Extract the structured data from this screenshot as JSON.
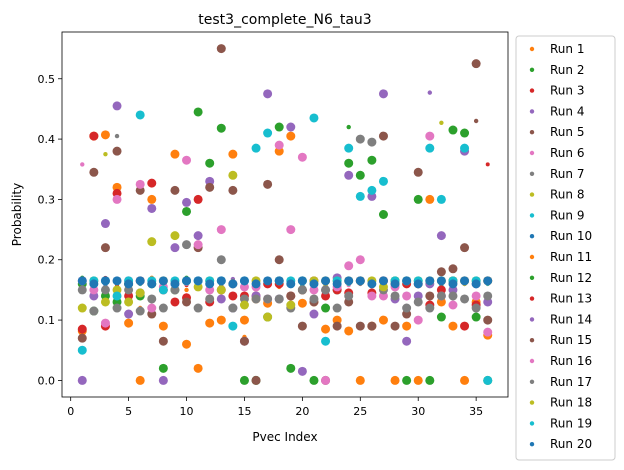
{
  "chart_data": {
    "type": "scatter",
    "title": "test3_complete_N6_tau3",
    "xlabel": "Pvec Index",
    "ylabel": "Probability",
    "xlim": [
      -0.75,
      37.75
    ],
    "ylim": [
      -0.0275,
      0.5775
    ],
    "xticks": [
      0,
      5,
      10,
      15,
      20,
      25,
      30,
      35
    ],
    "yticks": [
      0.0,
      0.1,
      0.2,
      0.3,
      0.4,
      0.5
    ],
    "xtick_labels": [
      "0",
      "5",
      "10",
      "15",
      "20",
      "25",
      "30",
      "35"
    ],
    "ytick_labels": [
      "0.0",
      "0.1",
      "0.2",
      "0.3",
      "0.4",
      "0.5"
    ],
    "grid": false,
    "legend_position": "outside-right",
    "x": [
      1,
      2,
      3,
      4,
      5,
      6,
      7,
      8,
      9,
      10,
      11,
      12,
      13,
      14,
      15,
      16,
      17,
      18,
      19,
      20,
      21,
      22,
      23,
      24,
      25,
      26,
      27,
      28,
      29,
      30,
      31,
      32,
      33,
      34,
      35,
      36
    ],
    "series": [
      {
        "name": "Run 1",
        "color": "#ff7f0e",
        "size": 2.2,
        "values": [
          0.155,
          0.16,
          0.168,
          0.141,
          0.163,
          0.12,
          0.17,
          0.159,
          0.16,
          0.15,
          0.167,
          0.165,
          0.158,
          0.16,
          0.072,
          0.165,
          0.16,
          0.155,
          0.168,
          0.163,
          0.165,
          0.16,
          0.158,
          0.16,
          0.165,
          0.16,
          0.163,
          0.159,
          0.166,
          0.162,
          0.16,
          0.165,
          0.163,
          0.16,
          0.168,
          0.16
        ]
      },
      {
        "name": "Run 2",
        "color": "#2ca02c",
        "size": 2.2,
        "values": [
          0.17,
          0.16,
          0.155,
          0.168,
          0.16,
          0.165,
          0.158,
          0.163,
          0.16,
          0.17,
          0.165,
          0.16,
          0.155,
          0.16,
          0.165,
          0.158,
          0.16,
          0.168,
          0.16,
          0.163,
          0.165,
          0.16,
          0.158,
          0.42,
          0.165,
          0.16,
          0.163,
          0.16,
          0.16,
          0.168,
          0.165,
          0.16,
          0.158,
          0.165,
          0.16,
          0.163
        ]
      },
      {
        "name": "Run 3",
        "color": "#d62728",
        "size": 2.0,
        "values": [
          0.165,
          0.16,
          0.17,
          0.158,
          0.163,
          0.16,
          0.165,
          0.16,
          0.168,
          0.158,
          0.16,
          0.163,
          0.165,
          0.16,
          0.158,
          0.168,
          0.16,
          0.163,
          0.16,
          0.165,
          0.158,
          0.16,
          0.168,
          0.16,
          0.163,
          0.165,
          0.16,
          0.158,
          0.16,
          0.168,
          0.165,
          0.16,
          0.163,
          0.16,
          0.158,
          0.358
        ]
      },
      {
        "name": "Run 4",
        "color": "#9467bd",
        "size": 2.2,
        "values": [
          0.16,
          0.165,
          0.158,
          0.163,
          0.16,
          0.168,
          0.16,
          0.165,
          0.158,
          0.16,
          0.163,
          0.165,
          0.16,
          0.168,
          0.158,
          0.16,
          0.163,
          0.165,
          0.16,
          0.158,
          0.168,
          0.16,
          0.163,
          0.165,
          0.16,
          0.158,
          0.16,
          0.168,
          0.165,
          0.16,
          0.477,
          0.16,
          0.158,
          0.165,
          0.16,
          0.163
        ]
      },
      {
        "name": "Run 5",
        "color": "#8c564b",
        "size": 2.2,
        "values": [
          0.168,
          0.16,
          0.163,
          0.165,
          0.158,
          0.16,
          0.165,
          0.16,
          0.168,
          0.163,
          0.158,
          0.16,
          0.165,
          0.16,
          0.163,
          0.168,
          0.158,
          0.16,
          0.165,
          0.16,
          0.163,
          0.158,
          0.16,
          0.165,
          0.168,
          0.16,
          0.163,
          0.16,
          0.158,
          0.165,
          0.16,
          0.168,
          0.163,
          0.16,
          0.43,
          0.165
        ]
      },
      {
        "name": "Run 6",
        "color": "#e377c2",
        "size": 2.2,
        "values": [
          0.358,
          0.163,
          0.16,
          0.165,
          0.158,
          0.168,
          0.16,
          0.163,
          0.165,
          0.16,
          0.158,
          0.168,
          0.16,
          0.165,
          0.163,
          0.16,
          0.158,
          0.165,
          0.168,
          0.16,
          0.163,
          0.165,
          0.16,
          0.158,
          0.16,
          0.168,
          0.165,
          0.163,
          0.16,
          0.158,
          0.165,
          0.16,
          0.168,
          0.163,
          0.16,
          0.165
        ]
      },
      {
        "name": "Run 7",
        "color": "#7f7f7f",
        "size": 2.2,
        "values": [
          0.16,
          0.168,
          0.163,
          0.405,
          0.16,
          0.165,
          0.158,
          0.16,
          0.168,
          0.163,
          0.165,
          0.16,
          0.158,
          0.165,
          0.16,
          0.168,
          0.163,
          0.16,
          0.165,
          0.158,
          0.16,
          0.168,
          0.163,
          0.165,
          0.16,
          0.158,
          0.165,
          0.16,
          0.168,
          0.163,
          0.16,
          0.165,
          0.158,
          0.16,
          0.168,
          0.163
        ]
      },
      {
        "name": "Run 8",
        "color": "#bcbd22",
        "size": 2.2,
        "values": [
          0.163,
          0.16,
          0.375,
          0.168,
          0.165,
          0.16,
          0.158,
          0.163,
          0.16,
          0.168,
          0.165,
          0.16,
          0.163,
          0.158,
          0.16,
          0.165,
          0.168,
          0.16,
          0.163,
          0.165,
          0.16,
          0.158,
          0.168,
          0.16,
          0.163,
          0.165,
          0.16,
          0.158,
          0.16,
          0.168,
          0.165,
          0.427,
          0.163,
          0.16,
          0.158,
          0.165
        ]
      },
      {
        "name": "Run 9",
        "color": "#17becf",
        "size": 2.2,
        "values": [
          0.165,
          0.158,
          0.16,
          0.163,
          0.168,
          0.16,
          0.165,
          0.158,
          0.16,
          0.163,
          0.168,
          0.16,
          0.165,
          0.158,
          0.16,
          0.163,
          0.168,
          0.16,
          0.165,
          0.158,
          0.16,
          0.163,
          0.168,
          0.16,
          0.165,
          0.158,
          0.16,
          0.163,
          0.168,
          0.16,
          0.165,
          0.158,
          0.16,
          0.163,
          0.168,
          0.16
        ]
      },
      {
        "name": "Run 10",
        "color": "#1f77b4",
        "size": 2.2,
        "values": [
          0.158,
          0.165,
          0.16,
          0.163,
          0.16,
          0.168,
          0.165,
          0.16,
          0.158,
          0.163,
          0.16,
          0.168,
          0.165,
          0.16,
          0.158,
          0.163,
          0.16,
          0.168,
          0.165,
          0.16,
          0.158,
          0.163,
          0.16,
          0.168,
          0.165,
          0.16,
          0.158,
          0.163,
          0.16,
          0.168,
          0.165,
          0.16,
          0.158,
          0.163,
          0.16,
          0.168
        ]
      },
      {
        "name": "Run 11",
        "color": "#ff7f0e",
        "size": 4.5,
        "values": [
          0.082,
          0.405,
          0.407,
          0.32,
          0.095,
          0.0,
          0.3,
          0.09,
          0.375,
          0.06,
          0.02,
          0.095,
          0.1,
          0.375,
          0.1,
          0.135,
          0.128,
          0.38,
          0.405,
          0.128,
          0.13,
          0.085,
          0.1,
          0.082,
          0.0,
          0.09,
          0.1,
          0.0,
          0.09,
          0.0,
          0.3,
          0.13,
          0.09,
          0.0,
          0.13,
          0.075
        ]
      },
      {
        "name": "Run 12",
        "color": "#2ca02c",
        "size": 4.5,
        "values": [
          0.16,
          0.115,
          0.14,
          0.13,
          0.16,
          0.14,
          0.16,
          0.02,
          0.15,
          0.28,
          0.445,
          0.36,
          0.418,
          0.16,
          0.0,
          0.0,
          0.105,
          0.42,
          0.02,
          0.15,
          0.0,
          0.12,
          0.15,
          0.36,
          0.34,
          0.365,
          0.275,
          0.165,
          0.0,
          0.3,
          0.0,
          0.105,
          0.415,
          0.41,
          0.105,
          0.0
        ]
      },
      {
        "name": "Run 13",
        "color": "#d62728",
        "size": 4.5,
        "values": [
          0.085,
          0.405,
          0.09,
          0.31,
          0.14,
          0.165,
          0.327,
          0.15,
          0.13,
          0.137,
          0.3,
          0.13,
          0.15,
          0.14,
          0.14,
          0.14,
          0.16,
          0.16,
          0.14,
          0.15,
          0.165,
          0.14,
          0.15,
          0.145,
          0.165,
          0.145,
          0.165,
          0.16,
          0.16,
          0.16,
          0.125,
          0.15,
          0.165,
          0.09,
          0.125,
          0.165
        ]
      },
      {
        "name": "Run 14",
        "color": "#9467bd",
        "size": 4.5,
        "values": [
          0.0,
          0.14,
          0.26,
          0.455,
          0.11,
          0.145,
          0.285,
          0.0,
          0.22,
          0.295,
          0.24,
          0.33,
          0.135,
          0.12,
          0.065,
          0.14,
          0.475,
          0.135,
          0.42,
          0.015,
          0.11,
          0.15,
          0.17,
          0.34,
          0.165,
          0.305,
          0.475,
          0.135,
          0.065,
          0.14,
          0.16,
          0.24,
          0.15,
          0.38,
          0.16,
          0.13
        ]
      },
      {
        "name": "Run 15",
        "color": "#8c564b",
        "size": 4.5,
        "values": [
          0.07,
          0.345,
          0.22,
          0.38,
          0.16,
          0.315,
          0.11,
          0.065,
          0.315,
          0.13,
          0.22,
          0.32,
          0.55,
          0.315,
          0.065,
          0.0,
          0.325,
          0.2,
          0.14,
          0.09,
          0.13,
          0.0,
          0.09,
          0.13,
          0.09,
          0.09,
          0.405,
          0.09,
          0.11,
          0.345,
          0.14,
          0.18,
          0.185,
          0.22,
          0.525,
          0.1
        ]
      },
      {
        "name": "Run 16",
        "color": "#e377c2",
        "size": 4.5,
        "values": [
          0.165,
          0.15,
          0.095,
          0.3,
          0.165,
          0.325,
          0.12,
          0.155,
          0.16,
          0.365,
          0.225,
          0.15,
          0.25,
          0.16,
          0.155,
          0.155,
          0.135,
          0.39,
          0.25,
          0.37,
          0.15,
          0.0,
          0.155,
          0.19,
          0.2,
          0.14,
          0.14,
          0.155,
          0.14,
          0.1,
          0.405,
          0.14,
          0.125,
          0.165,
          0.14,
          0.08
        ]
      },
      {
        "name": "Run 17",
        "color": "#7f7f7f",
        "size": 4.5,
        "values": [
          0.15,
          0.115,
          0.15,
          0.12,
          0.15,
          0.115,
          0.135,
          0.12,
          0.15,
          0.225,
          0.12,
          0.135,
          0.2,
          0.12,
          0.135,
          0.135,
          0.135,
          0.135,
          0.12,
          0.15,
          0.135,
          0.15,
          0.12,
          0.14,
          0.4,
          0.395,
          0.15,
          0.14,
          0.12,
          0.13,
          0.12,
          0.14,
          0.14,
          0.135,
          0.12,
          0.14
        ]
      },
      {
        "name": "Run 18",
        "color": "#bcbd22",
        "size": 4.5,
        "values": [
          0.12,
          0.165,
          0.13,
          0.15,
          0.13,
          0.145,
          0.23,
          0.165,
          0.24,
          0.165,
          0.155,
          0.165,
          0.15,
          0.34,
          0.125,
          0.165,
          0.105,
          0.165,
          0.125,
          0.165,
          0.165,
          0.165,
          0.165,
          0.165,
          0.165,
          0.165,
          0.155,
          0.165,
          0.165,
          0.165,
          0.165,
          0.165,
          0.165,
          0.165,
          0.165,
          0.165
        ]
      },
      {
        "name": "Run 19",
        "color": "#17becf",
        "size": 4.5,
        "values": [
          0.05,
          0.165,
          0.165,
          0.14,
          0.165,
          0.44,
          0.165,
          0.15,
          0.165,
          0.165,
          0.165,
          0.165,
          0.165,
          0.09,
          0.165,
          0.385,
          0.41,
          0.165,
          0.165,
          0.165,
          0.435,
          0.065,
          0.165,
          0.385,
          0.305,
          0.315,
          0.33,
          0.165,
          0.165,
          0.165,
          0.385,
          0.3,
          0.165,
          0.385,
          0.165,
          0.0
        ]
      },
      {
        "name": "Run 20",
        "color": "#1f77b4",
        "size": 4.5,
        "values": [
          0.165,
          0.16,
          0.165,
          0.165,
          0.16,
          0.165,
          0.16,
          0.165,
          0.16,
          0.165,
          0.165,
          0.16,
          0.165,
          0.16,
          0.165,
          0.16,
          0.165,
          0.165,
          0.16,
          0.165,
          0.16,
          0.165,
          0.16,
          0.165,
          0.165,
          0.16,
          0.165,
          0.16,
          0.165,
          0.16,
          0.165,
          0.165,
          0.16,
          0.165,
          0.16,
          0.165
        ]
      }
    ]
  }
}
